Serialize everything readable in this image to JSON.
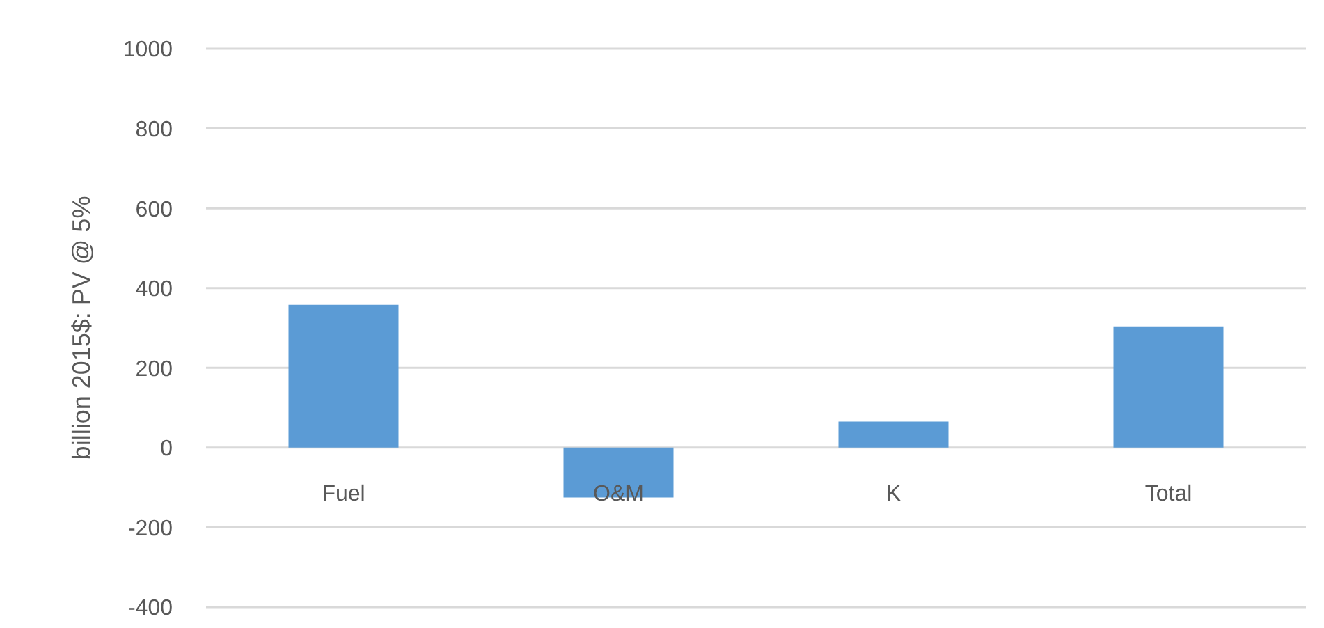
{
  "chart_data": {
    "type": "bar",
    "ylabel": "billion 2015$: PV @ 5%",
    "categories": [
      "Fuel",
      "O&M",
      "K",
      "Total"
    ],
    "values": [
      358,
      -125,
      65,
      304
    ],
    "color": "#5b9bd5",
    "ylim": [
      -400,
      1000
    ],
    "yticks": [
      -400,
      -200,
      0,
      200,
      400,
      600,
      800,
      1000
    ],
    "grid": "y"
  }
}
